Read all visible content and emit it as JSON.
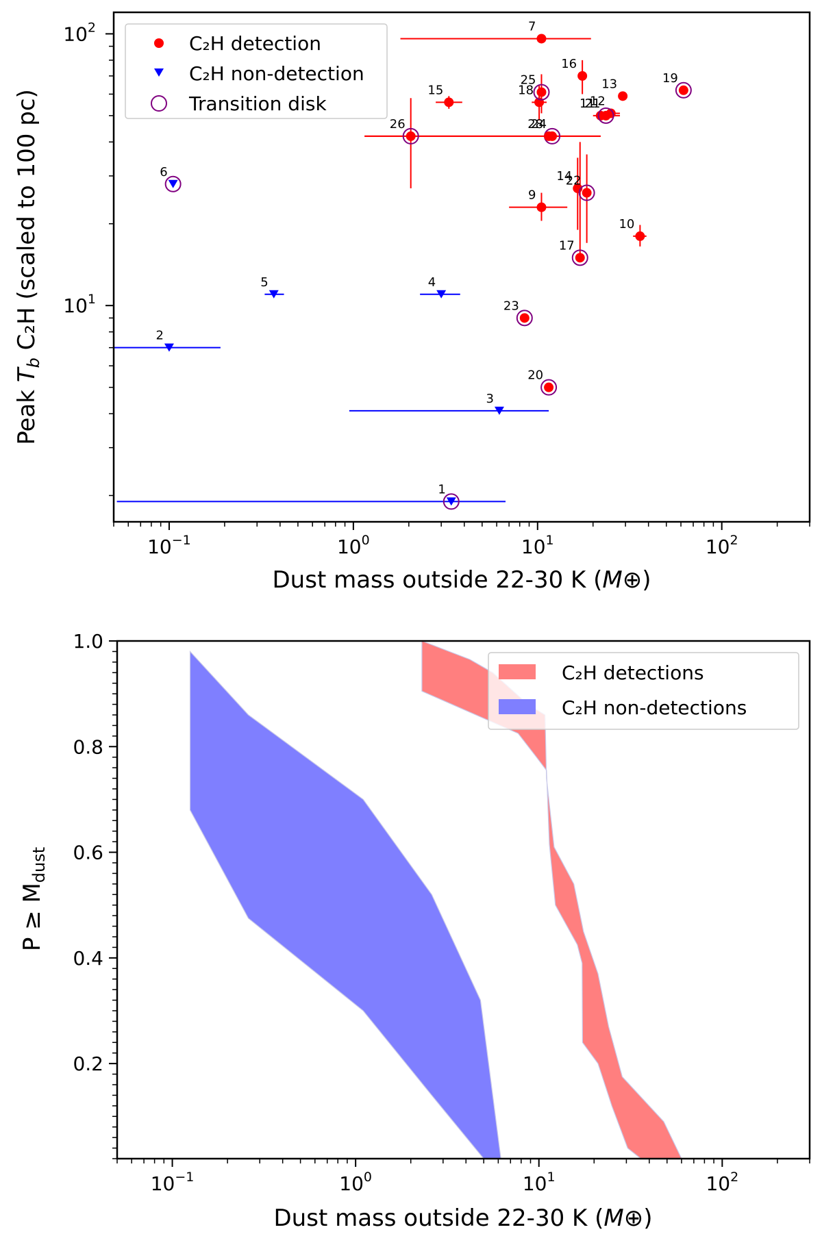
{
  "chart_data": [
    {
      "type": "scatter",
      "xlabel": "Dust mass outside 22-30 K",
      "xlabel_unit": "M⊕",
      "ylabel_prefix": "Peak",
      "ylabel_var": "T",
      "ylabel_sub": "b",
      "ylabel_suffix": "C₂H (scaled to 100 pc)",
      "x_scale": "log",
      "y_scale": "log",
      "xlim": [
        0.05,
        300
      ],
      "ylim": [
        1.6,
        120
      ],
      "x_ticks": [
        {
          "base": "10",
          "exp": "−1",
          "v": 0.1
        },
        {
          "base": "10",
          "exp": "0",
          "v": 1
        },
        {
          "base": "10",
          "exp": "1",
          "v": 10
        },
        {
          "base": "10",
          "exp": "2",
          "v": 100
        }
      ],
      "y_ticks": [
        {
          "base": "10",
          "exp": "1",
          "v": 10
        },
        {
          "base": "10",
          "exp": "2",
          "v": 100
        }
      ],
      "legend": {
        "position": "top-left",
        "detection": "C₂H detection",
        "nondetection": "C₂H non-detection",
        "transition": "Transition disk"
      },
      "colors": {
        "detection": "#ff0000",
        "nondetection": "#0000ff",
        "transition": "#800080"
      },
      "points": [
        {
          "id": "1",
          "x": 3.4,
          "y": 1.9,
          "xerr": [
            0.052,
            6.7
          ],
          "type": "nondetection",
          "transition": true
        },
        {
          "id": "2",
          "x": 0.1,
          "y": 7.0,
          "xerr": [
            0.05,
            0.19
          ],
          "type": "nondetection",
          "transition": false
        },
        {
          "id": "3",
          "x": 6.2,
          "y": 4.1,
          "xerr": [
            0.95,
            11.5
          ],
          "type": "nondetection",
          "transition": false
        },
        {
          "id": "4",
          "x": 3.0,
          "y": 11.0,
          "xerr": [
            2.3,
            3.8
          ],
          "type": "nondetection",
          "transition": false
        },
        {
          "id": "5",
          "x": 0.37,
          "y": 11.0,
          "xerr": [
            0.33,
            0.42
          ],
          "type": "nondetection",
          "transition": false
        },
        {
          "id": "6",
          "x": 0.105,
          "y": 28.0,
          "type": "nondetection",
          "transition": true
        },
        {
          "id": "7",
          "x": 10.5,
          "y": 96.0,
          "xerr": [
            1.8,
            19.5
          ],
          "type": "detection",
          "transition": false
        },
        {
          "id": "9",
          "x": 10.5,
          "y": 23.0,
          "xerr": [
            7.0,
            14.5
          ],
          "yerr": [
            20.5,
            26.0
          ],
          "type": "detection",
          "transition": false
        },
        {
          "id": "10",
          "x": 36.0,
          "y": 18.0,
          "xerr": [
            33.0,
            39.0
          ],
          "yerr": [
            16.5,
            19.8
          ],
          "type": "detection",
          "transition": false
        },
        {
          "id": "11",
          "x": 22.0,
          "y": 50.0,
          "xerr": [
            20.0,
            28.0
          ],
          "type": "detection",
          "transition": false
        },
        {
          "id": "12",
          "x": 25.0,
          "y": 51.0,
          "xerr": [
            22.5,
            28.0
          ],
          "type": "detection",
          "transition": false
        },
        {
          "id": "13",
          "x": 29.0,
          "y": 59.0,
          "type": "detection",
          "transition": false
        },
        {
          "id": "14",
          "x": 16.5,
          "y": 27.0,
          "yerr": [
            19.0,
            35.0
          ],
          "type": "detection",
          "transition": false
        },
        {
          "id": "15",
          "x": 3.3,
          "y": 56.0,
          "xerr": [
            2.8,
            3.9
          ],
          "yerr": [
            53.0,
            59.0
          ],
          "type": "detection",
          "transition": false
        },
        {
          "id": "16",
          "x": 17.5,
          "y": 70.0,
          "yerr": [
            60.0,
            80.0
          ],
          "type": "detection",
          "transition": false
        },
        {
          "id": "17",
          "x": 17.0,
          "y": 15.0,
          "yerr": [
            15.0,
            40.0
          ],
          "type": "detection",
          "transition": true
        },
        {
          "id": "18",
          "x": 10.2,
          "y": 56.0,
          "xerr": [
            9.3,
            11.2
          ],
          "yerr": [
            48.0,
            65.0
          ],
          "type": "detection",
          "transition": false
        },
        {
          "id": "19",
          "x": 62.0,
          "y": 62.0,
          "type": "detection",
          "transition": true
        },
        {
          "id": "20",
          "x": 11.5,
          "y": 5.0,
          "type": "detection",
          "transition": true
        },
        {
          "id": "21",
          "x": 23.5,
          "y": 50.0,
          "type": "detection",
          "transition": true
        },
        {
          "id": "22",
          "x": 18.5,
          "y": 26.0,
          "yerr": [
            17.0,
            36.0
          ],
          "type": "detection",
          "transition": true
        },
        {
          "id": "23",
          "x": 8.5,
          "y": 9.0,
          "type": "detection",
          "transition": true
        },
        {
          "id": "24",
          "x": 12.0,
          "y": 42.0,
          "type": "detection",
          "transition": true
        },
        {
          "id": "25",
          "x": 10.5,
          "y": 61.0,
          "yerr": [
            51.0,
            71.0
          ],
          "type": "detection",
          "transition": true
        },
        {
          "id": "26",
          "x": 2.05,
          "y": 42.0,
          "xerr": [
            1.15,
            22.0
          ],
          "yerr": [
            27.0,
            58.0
          ],
          "type": "detection",
          "transition": true
        },
        {
          "id": "28",
          "x": 11.5,
          "y": 42.0,
          "xerr": [
            1.15,
            22.0
          ],
          "type": "detection",
          "transition": false
        }
      ]
    },
    {
      "type": "area",
      "xlabel": "Dust mass outside 22-30 K",
      "xlabel_unit": "M⊕",
      "ylabel": "P ≥ M",
      "ylabel_sub": "dust",
      "x_scale": "log",
      "xlim": [
        0.05,
        300
      ],
      "ylim": [
        0.02,
        1.0
      ],
      "x_ticks": [
        {
          "base": "10",
          "exp": "−1",
          "v": 0.1
        },
        {
          "base": "10",
          "exp": "0",
          "v": 1
        },
        {
          "base": "10",
          "exp": "1",
          "v": 10
        },
        {
          "base": "10",
          "exp": "2",
          "v": 100
        }
      ],
      "y_ticks": [
        "0.2",
        "0.4",
        "0.6",
        "0.8",
        "1.0"
      ],
      "legend": {
        "position": "top-right"
      },
      "series": [
        {
          "name": "C₂H detections",
          "color": "#ff7f7f",
          "upper": [
            [
              2.3,
              1.0
            ],
            [
              4.2,
              0.965
            ],
            [
              5.6,
              0.94
            ],
            [
              8.7,
              0.88
            ],
            [
              10.8,
              0.86
            ],
            [
              11.0,
              0.74
            ],
            [
              12.1,
              0.61
            ],
            [
              15.5,
              0.54
            ],
            [
              17.5,
              0.45
            ],
            [
              21.0,
              0.37
            ],
            [
              24.0,
              0.27
            ],
            [
              28.5,
              0.175
            ],
            [
              48.0,
              0.09
            ],
            [
              60.0,
              0.02
            ]
          ],
          "lower": [
            [
              2.3,
              0.905
            ],
            [
              4.2,
              0.865
            ],
            [
              7.7,
              0.825
            ],
            [
              9.7,
              0.78
            ],
            [
              11.0,
              0.755
            ],
            [
              11.4,
              0.615
            ],
            [
              12.3,
              0.5
            ],
            [
              16.2,
              0.425
            ],
            [
              17.2,
              0.39
            ],
            [
              17.3,
              0.24
            ],
            [
              21.0,
              0.2
            ],
            [
              25.0,
              0.12
            ],
            [
              30.5,
              0.04
            ],
            [
              36.0,
              0.02
            ]
          ]
        },
        {
          "name": "C₂H non-detections",
          "color": "#7f7fff",
          "upper": [
            [
              0.125,
              0.98
            ],
            [
              0.26,
              0.86
            ],
            [
              1.1,
              0.7
            ],
            [
              2.6,
              0.52
            ],
            [
              4.8,
              0.32
            ],
            [
              6.2,
              0.02
            ]
          ],
          "lower": [
            [
              0.125,
              0.68
            ],
            [
              0.26,
              0.475
            ],
            [
              1.1,
              0.3
            ],
            [
              2.6,
              0.14
            ],
            [
              5.0,
              0.02
            ]
          ]
        }
      ]
    }
  ]
}
